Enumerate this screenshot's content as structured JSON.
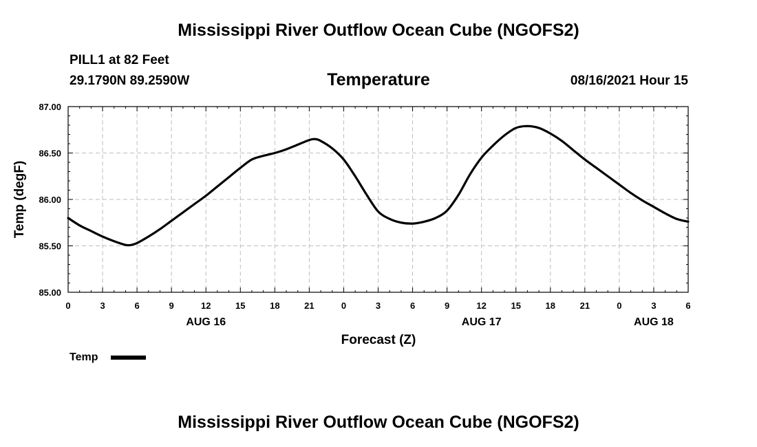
{
  "header": {
    "title_top": "Mississippi River Outflow Ocean Cube (NGOFS2)",
    "station": "PILL1 at 82 Feet",
    "coords": "29.1790N  89.2590W",
    "variable": "Temperature",
    "datetime": "08/16/2021 Hour 15",
    "title_bottom": "Mississippi River Outflow Ocean Cube (NGOFS2)"
  },
  "legend": {
    "label": "Temp",
    "color": "#000000"
  },
  "chart_data": {
    "type": "line",
    "xlabel": "Forecast (Z)",
    "ylabel": "Temp (degF)",
    "xlim": [
      0,
      54
    ],
    "ylim": [
      85.0,
      87.0
    ],
    "yticks": [
      "85.00",
      "85.50",
      "86.00",
      "86.50",
      "87.00"
    ],
    "xtick_labels": [
      "0",
      "3",
      "6",
      "9",
      "12",
      "15",
      "18",
      "21",
      "0",
      "3",
      "6",
      "9",
      "12",
      "15",
      "18",
      "21",
      "0",
      "3",
      "6"
    ],
    "day_labels": [
      {
        "label": "AUG 16",
        "hour": 12
      },
      {
        "label": "AUG 17",
        "hour": 36
      },
      {
        "label": "AUG 18",
        "hour": 51
      }
    ],
    "grid": true,
    "series": [
      {
        "name": "Temp",
        "color": "#000000",
        "x": [
          0,
          1,
          2,
          3,
          4,
          5,
          5.5,
          6,
          7,
          8,
          9,
          10,
          11,
          12,
          13,
          14,
          15,
          16,
          17,
          18,
          19,
          20,
          21,
          21.5,
          22,
          23,
          24,
          25,
          26,
          27,
          28,
          29,
          30,
          31,
          32,
          33,
          34,
          35,
          36,
          37,
          38,
          39,
          40,
          41,
          42,
          43,
          44,
          45,
          46,
          47,
          48,
          49,
          50,
          51,
          52,
          53,
          54
        ],
        "values": [
          85.8,
          85.72,
          85.66,
          85.6,
          85.55,
          85.51,
          85.51,
          85.53,
          85.6,
          85.68,
          85.77,
          85.86,
          85.95,
          86.04,
          86.14,
          86.24,
          86.34,
          86.43,
          86.47,
          86.5,
          86.54,
          86.59,
          86.64,
          86.65,
          86.63,
          86.55,
          86.43,
          86.25,
          86.05,
          85.87,
          85.79,
          85.75,
          85.74,
          85.76,
          85.8,
          85.88,
          86.05,
          86.27,
          86.45,
          86.58,
          86.69,
          86.77,
          86.79,
          86.77,
          86.71,
          86.63,
          86.53,
          86.43,
          86.34,
          86.25,
          86.16,
          86.07,
          85.99,
          85.92,
          85.85,
          85.79,
          85.76
        ]
      }
    ]
  }
}
